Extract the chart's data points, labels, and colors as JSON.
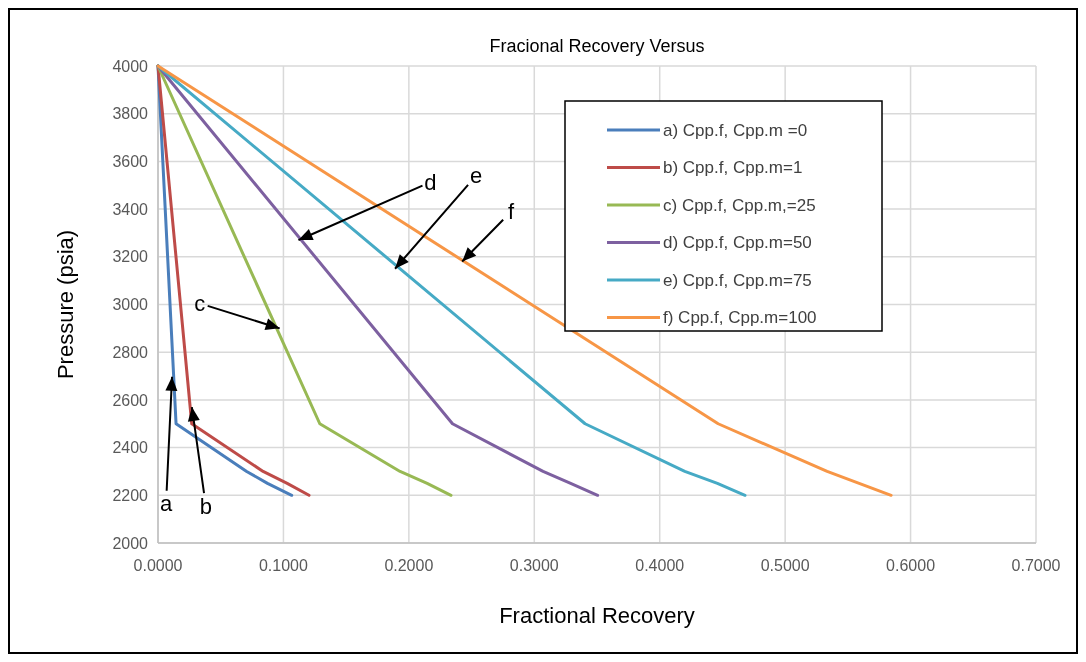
{
  "chart_data": {
    "type": "line",
    "title": "Fracional Recovery Versus",
    "xlabel": "Fractional Recovery",
    "ylabel": "Pressure (psia)",
    "xlim": [
      0,
      0.7
    ],
    "ylim": [
      2000,
      4000
    ],
    "xticks": [
      {
        "value": 0,
        "label": "0.0000"
      },
      {
        "value": 0.1,
        "label": "0.1000"
      },
      {
        "value": 0.2,
        "label": "0.2000"
      },
      {
        "value": 0.3,
        "label": "0.3000"
      },
      {
        "value": 0.4,
        "label": "0.4000"
      },
      {
        "value": 0.5,
        "label": "0.5000"
      },
      {
        "value": 0.6,
        "label": "0.6000"
      },
      {
        "value": 0.7,
        "label": "0.7000"
      }
    ],
    "yticks": [
      2000,
      2200,
      2400,
      2600,
      2800,
      3000,
      3200,
      3400,
      3600,
      3800,
      4000
    ],
    "grid": true,
    "legend": "top right",
    "marker": "none",
    "line_style": "solid",
    "series": [
      {
        "name": "a) Cpp.f, Cpp.m =0",
        "color": "#4a7ebb",
        "x": [
          0,
          0.0144,
          0.0707,
          0.0873,
          0.1066
        ],
        "values": [
          4000,
          2500,
          2300,
          2250,
          2200
        ]
      },
      {
        "name": "b) Cpp.f, Cpp.m=1",
        "color": "#be4b48",
        "x": [
          0,
          0.0269,
          0.0838,
          0.103,
          0.1204
        ],
        "values": [
          4000,
          2500,
          2300,
          2250,
          2200
        ]
      },
      {
        "name": "c) Cpp.f, Cpp.m,=25",
        "color": "#98b954",
        "x": [
          0,
          0.129,
          0.193,
          0.2146,
          0.2336
        ],
        "values": [
          4000,
          2500,
          2300,
          2250,
          2200
        ]
      },
      {
        "name": "d) Cpp.f, Cpp.m=50",
        "color": "#7d60a0",
        "x": [
          0,
          0.2348,
          0.307,
          0.329,
          0.3505
        ],
        "values": [
          4000,
          2500,
          2300,
          2250,
          2200
        ]
      },
      {
        "name": "e) Cpp.f, Cpp.m=75",
        "color": "#46aac5",
        "x": [
          0,
          0.3405,
          0.42,
          0.446,
          0.468
        ],
        "values": [
          4000,
          2500,
          2300,
          2250,
          2200
        ]
      },
      {
        "name": "f) Cpp.f, Cpp.m=100",
        "color": "#f79646",
        "x": [
          0,
          0.4466,
          0.5335,
          0.5845
        ],
        "values": [
          4000,
          2500,
          2300,
          2200
        ]
      }
    ],
    "annotations": [
      {
        "text": "a",
        "x": 0.0112,
        "y": 2697
      },
      {
        "text": "b",
        "x": 0.027,
        "y": 2570
      },
      {
        "text": "c",
        "x": 0.097,
        "y": 2900
      },
      {
        "text": "d",
        "x": 0.112,
        "y": 3270
      },
      {
        "text": "e",
        "x": 0.189,
        "y": 3150
      },
      {
        "text": "f",
        "x": 0.2425,
        "y": 3180
      }
    ]
  }
}
